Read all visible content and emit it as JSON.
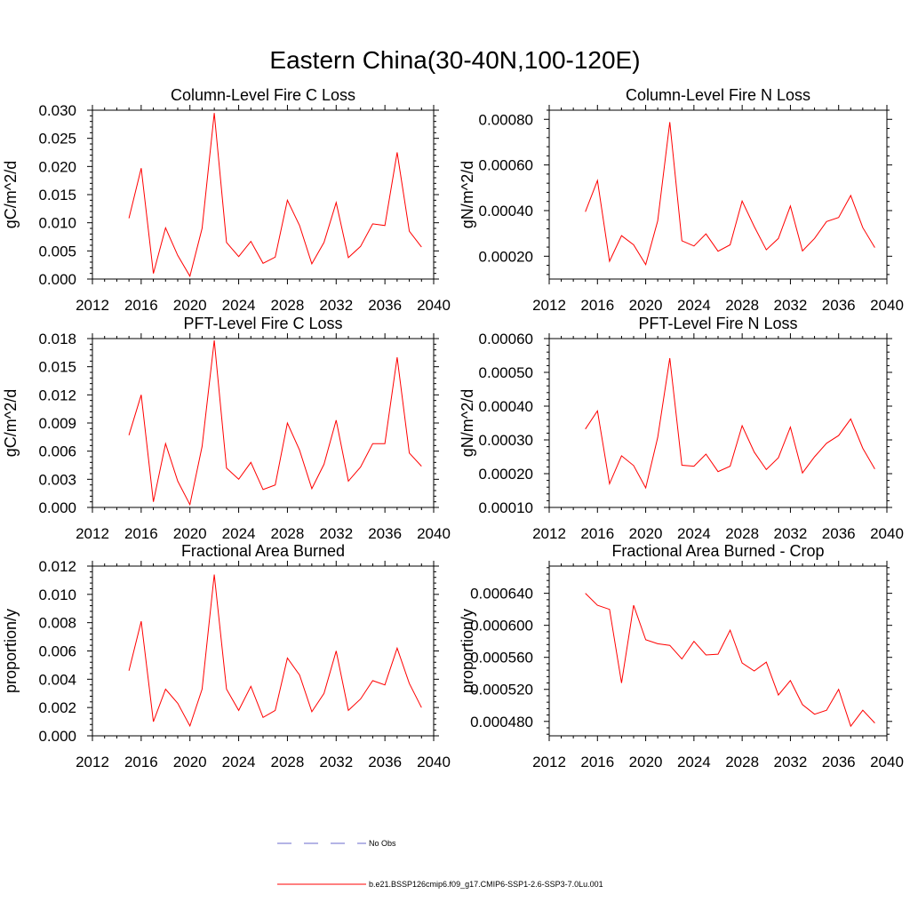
{
  "figure": {
    "title": "Eastern China(30-40N,100-120E)",
    "legend": [
      {
        "label": "No Obs",
        "style": "dashed",
        "color": "#6a6acd"
      },
      {
        "label": "b.e21.BSSP126cmip6.f09_g17.CMIP6-SSP1-2.6-SSP3-7.0Lu.001",
        "style": "solid",
        "color": "#ff0000"
      }
    ]
  },
  "chart_data": [
    {
      "type": "line",
      "title": "Column-Level Fire C Loss",
      "ylabel": "gC/m^2/d",
      "xlim": [
        2012,
        2040
      ],
      "xticks": [
        "2012",
        "2016",
        "2020",
        "2024",
        "2028",
        "2032",
        "2036",
        "2040"
      ],
      "ylim": [
        0,
        0.03
      ],
      "yticks": [
        "0.000",
        "0.005",
        "0.010",
        "0.015",
        "0.020",
        "0.025",
        "0.030"
      ],
      "series": [
        {
          "color": "#ff0000",
          "x": [
            2015,
            2016,
            2017,
            2018,
            2019,
            2020,
            2021,
            2022,
            2023,
            2024,
            2025,
            2026,
            2027,
            2028,
            2029,
            2030,
            2031,
            2032,
            2033,
            2034,
            2035,
            2036,
            2037,
            2038,
            2039
          ],
          "values": [
            0.0108,
            0.0197,
            0.001,
            0.0091,
            0.0042,
            0.0005,
            0.009,
            0.0295,
            0.0065,
            0.004,
            0.0067,
            0.0028,
            0.0039,
            0.014,
            0.0095,
            0.0027,
            0.0065,
            0.0136,
            0.0038,
            0.0058,
            0.0098,
            0.0095,
            0.0225,
            0.0085,
            0.0057
          ]
        }
      ]
    },
    {
      "type": "line",
      "title": "Column-Level Fire N Loss",
      "ylabel": "gN/m^2/d",
      "xlim": [
        2012,
        2040
      ],
      "xticks": [
        "2012",
        "2016",
        "2020",
        "2024",
        "2028",
        "2032",
        "2036",
        "2040"
      ],
      "ylim": [
        0.0001,
        0.00084
      ],
      "yticks": [
        "0.00020",
        "0.00040",
        "0.00060",
        "0.00080"
      ],
      "ytick_values": [
        0.0002,
        0.0004,
        0.0006,
        0.0008
      ],
      "series": [
        {
          "color": "#ff0000",
          "x": [
            2015,
            2016,
            2017,
            2018,
            2019,
            2020,
            2021,
            2022,
            2023,
            2024,
            2025,
            2026,
            2027,
            2028,
            2029,
            2030,
            2031,
            2032,
            2033,
            2034,
            2035,
            2036,
            2037,
            2038,
            2039
          ],
          "values": [
            0.000395,
            0.000532,
            0.000178,
            0.00029,
            0.00025,
            0.000163,
            0.000355,
            0.000788,
            0.000268,
            0.000245,
            0.000298,
            0.000222,
            0.00025,
            0.000442,
            0.00033,
            0.000228,
            0.000278,
            0.00042,
            0.000223,
            0.000278,
            0.000352,
            0.00037,
            0.000466,
            0.000325,
            0.000238
          ]
        }
      ]
    },
    {
      "type": "line",
      "title": "PFT-Level Fire C Loss",
      "ylabel": "gC/m^2/d",
      "xlim": [
        2012,
        2040
      ],
      "xticks": [
        "2012",
        "2016",
        "2020",
        "2024",
        "2028",
        "2032",
        "2036",
        "2040"
      ],
      "ylim": [
        0,
        0.018
      ],
      "yticks": [
        "0.000",
        "0.003",
        "0.006",
        "0.009",
        "0.012",
        "0.015",
        "0.018"
      ],
      "series": [
        {
          "color": "#ff0000",
          "x": [
            2015,
            2016,
            2017,
            2018,
            2019,
            2020,
            2021,
            2022,
            2023,
            2024,
            2025,
            2026,
            2027,
            2028,
            2029,
            2030,
            2031,
            2032,
            2033,
            2034,
            2035,
            2036,
            2037,
            2038,
            2039
          ],
          "values": [
            0.0077,
            0.012,
            0.0006,
            0.0068,
            0.0028,
            0.0003,
            0.0065,
            0.0178,
            0.0042,
            0.003,
            0.0048,
            0.0019,
            0.0024,
            0.009,
            0.0061,
            0.002,
            0.0046,
            0.0093,
            0.0028,
            0.0043,
            0.0068,
            0.0068,
            0.016,
            0.0058,
            0.0044
          ]
        }
      ]
    },
    {
      "type": "line",
      "title": "PFT-Level Fire N Loss",
      "ylabel": "gN/m^2/d",
      "xlim": [
        2012,
        2040
      ],
      "xticks": [
        "2012",
        "2016",
        "2020",
        "2024",
        "2028",
        "2032",
        "2036",
        "2040"
      ],
      "ylim": [
        0.0001,
        0.0006
      ],
      "yticks": [
        "0.00010",
        "0.00020",
        "0.00030",
        "0.00040",
        "0.00050",
        "0.00060"
      ],
      "series": [
        {
          "color": "#ff0000",
          "x": [
            2015,
            2016,
            2017,
            2018,
            2019,
            2020,
            2021,
            2022,
            2023,
            2024,
            2025,
            2026,
            2027,
            2028,
            2029,
            2030,
            2031,
            2032,
            2033,
            2034,
            2035,
            2036,
            2037,
            2038,
            2039
          ],
          "values": [
            0.000332,
            0.000386,
            0.00017,
            0.000253,
            0.000224,
            0.000158,
            0.000307,
            0.000542,
            0.000225,
            0.000222,
            0.000258,
            0.000206,
            0.000222,
            0.000342,
            0.000264,
            0.000212,
            0.000247,
            0.000338,
            0.000202,
            0.00025,
            0.00029,
            0.000313,
            0.000362,
            0.000275,
            0.000214
          ]
        }
      ]
    },
    {
      "type": "line",
      "title": "Fractional Area Burned",
      "ylabel": "proportion/y",
      "xlim": [
        2012,
        2040
      ],
      "xticks": [
        "2012",
        "2016",
        "2020",
        "2024",
        "2028",
        "2032",
        "2036",
        "2040"
      ],
      "ylim": [
        0,
        0.012
      ],
      "yticks": [
        "0.000",
        "0.002",
        "0.004",
        "0.006",
        "0.008",
        "0.010",
        "0.012"
      ],
      "series": [
        {
          "color": "#ff0000",
          "x": [
            2015,
            2016,
            2017,
            2018,
            2019,
            2020,
            2021,
            2022,
            2023,
            2024,
            2025,
            2026,
            2027,
            2028,
            2029,
            2030,
            2031,
            2032,
            2033,
            2034,
            2035,
            2036,
            2037,
            2038,
            2039
          ],
          "values": [
            0.0046,
            0.0081,
            0.001,
            0.0033,
            0.0023,
            0.0007,
            0.0033,
            0.0114,
            0.0033,
            0.0018,
            0.0035,
            0.0013,
            0.0018,
            0.0055,
            0.0043,
            0.0017,
            0.003,
            0.006,
            0.0018,
            0.0026,
            0.0039,
            0.0036,
            0.0062,
            0.0037,
            0.002
          ]
        }
      ]
    },
    {
      "type": "line",
      "title": "Fractional Area Burned - Crop",
      "ylabel": "proportion/y",
      "xlim": [
        2012,
        2040
      ],
      "xticks": [
        "2012",
        "2016",
        "2020",
        "2024",
        "2028",
        "2032",
        "2036",
        "2040"
      ],
      "ylim": [
        0.000462,
        0.000674
      ],
      "yticks": [
        "0.000480",
        "0.000520",
        "0.000560",
        "0.000600",
        "0.000640"
      ],
      "ytick_values": [
        0.00048,
        0.00052,
        0.00056,
        0.0006,
        0.00064
      ],
      "series": [
        {
          "color": "#ff0000",
          "x": [
            2015,
            2016,
            2017,
            2018,
            2019,
            2020,
            2021,
            2022,
            2023,
            2024,
            2025,
            2026,
            2027,
            2028,
            2029,
            2030,
            2031,
            2032,
            2033,
            2034,
            2035,
            2036,
            2037,
            2038,
            2039
          ],
          "values": [
            0.00064,
            0.000625,
            0.00062,
            0.000528,
            0.000625,
            0.000582,
            0.000577,
            0.000575,
            0.000558,
            0.00058,
            0.000563,
            0.000564,
            0.000594,
            0.000553,
            0.000543,
            0.000554,
            0.000513,
            0.000531,
            0.000501,
            0.000489,
            0.000494,
            0.00052,
            0.000474,
            0.000494,
            0.000478
          ]
        }
      ]
    }
  ]
}
